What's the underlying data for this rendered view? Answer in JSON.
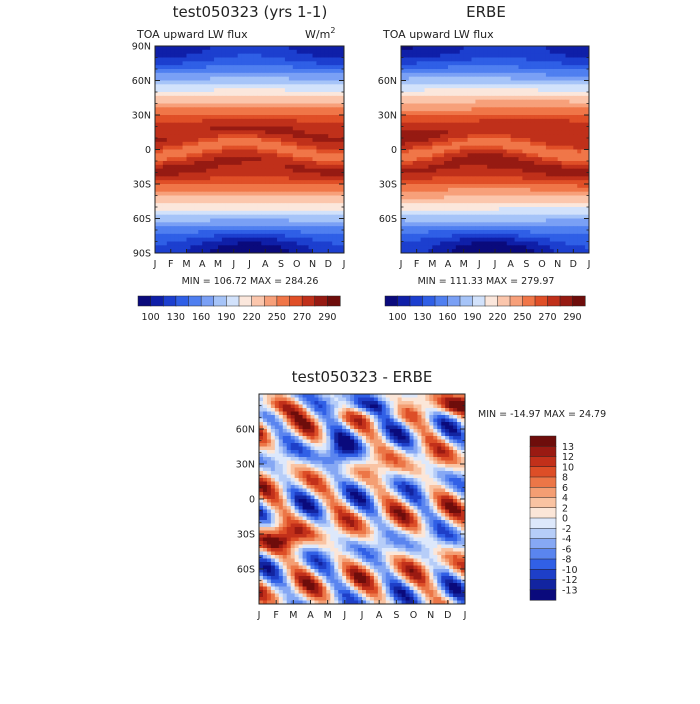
{
  "figure": {
    "background": "#ffffff"
  },
  "chart_data": [
    {
      "type": "heatmap",
      "id": "model",
      "title": "test050323 (yrs 1-1)",
      "subtitle_left": "TOA upward LW flux",
      "units": "W/m",
      "units_exp": "2",
      "xticklabels": [
        "J",
        "F",
        "M",
        "A",
        "M",
        "J",
        "J",
        "A",
        "S",
        "O",
        "N",
        "D",
        "J"
      ],
      "yticklabels": [
        "90N",
        "60N",
        "30N",
        "0",
        "30S",
        "60S",
        "90S"
      ],
      "ylim": [
        -90,
        90
      ],
      "stats_text": "MIN = 106.72 MAX = 284.26",
      "min": 106.72,
      "max": 284.26,
      "colorbar": {
        "levels": [
          100,
          115,
          130,
          145,
          160,
          175,
          190,
          205,
          220,
          235,
          250,
          260,
          270,
          280,
          290
        ],
        "labels": [
          "100",
          "130",
          "160",
          "190",
          "220",
          "250",
          "270",
          "290"
        ],
        "colors": [
          "#0a0a7c",
          "#0f1fa8",
          "#1c3fcf",
          "#2f5fe6",
          "#4f7ff0",
          "#7aa0f5",
          "#a6c4f8",
          "#d2e2fb",
          "#fbe7dc",
          "#fbc6ac",
          "#f7a07a",
          "#f07648",
          "#e04f27",
          "#c0301a",
          "#961a12",
          "#6e0d0b"
        ]
      }
    },
    {
      "type": "heatmap",
      "id": "obs",
      "title": "ERBE",
      "subtitle_left": "TOA upward LW flux",
      "xticklabels": [
        "J",
        "F",
        "M",
        "A",
        "M",
        "J",
        "J",
        "A",
        "S",
        "O",
        "N",
        "D",
        "J"
      ],
      "yticklabels": [
        "60N",
        "30N",
        "0",
        "30S",
        "60S"
      ],
      "ylim": [
        -90,
        90
      ],
      "stats_text": "MIN = 111.33 MAX = 279.97",
      "min": 111.33,
      "max": 279.97,
      "colorbar": {
        "labels": [
          "100",
          "130",
          "160",
          "190",
          "220",
          "250",
          "270",
          "290"
        ]
      }
    },
    {
      "type": "heatmap",
      "id": "diff",
      "title": "test050323 - ERBE",
      "xticklabels": [
        "J",
        "F",
        "M",
        "A",
        "M",
        "J",
        "J",
        "A",
        "S",
        "O",
        "N",
        "D",
        "J"
      ],
      "yticklabels": [
        "60N",
        "30N",
        "0",
        "30S",
        "60S"
      ],
      "ylim": [
        -90,
        90
      ],
      "stats_text": "MIN = -14.97 MAX =  24.79",
      "min": -14.97,
      "max": 24.79,
      "colorbar": {
        "levels": [
          -13,
          -12,
          -10,
          -8,
          -6,
          -4,
          -2,
          0,
          2,
          4,
          6,
          8,
          10,
          12,
          13
        ],
        "labels": [
          "13",
          "12",
          "10",
          "8",
          "6",
          "4",
          "2",
          "0",
          "-2",
          "-4",
          "-6",
          "-8",
          "-10",
          "-12",
          "-13"
        ],
        "colors": [
          "#0a0a7c",
          "#1224a0",
          "#1e3fc8",
          "#3160e6",
          "#5a85ef",
          "#86a8f4",
          "#b6cdf8",
          "#dde8fb",
          "#fbe6d8",
          "#f9c3a2",
          "#f49e73",
          "#ec7647",
          "#dd4e27",
          "#c2301a",
          "#9a1a12",
          "#6e0d0b"
        ]
      }
    }
  ]
}
